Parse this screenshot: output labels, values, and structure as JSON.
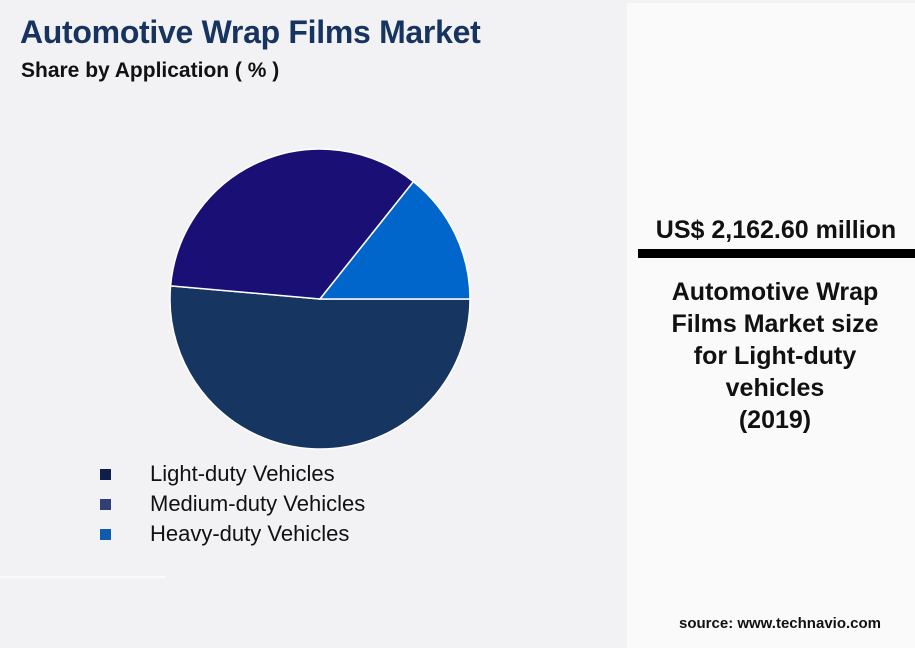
{
  "header": {
    "title": "Automotive Wrap Films Market",
    "subtitle": "Share by Application ( % )"
  },
  "legend": {
    "items": [
      {
        "label": "Light-duty Vehicles",
        "color": "#0f1e4b"
      },
      {
        "label": "Medium-duty Vehicles",
        "color": "#2e4076"
      },
      {
        "label": "Heavy-duty Vehicles",
        "color": "#0e5cb0"
      }
    ]
  },
  "side_panel": {
    "market_value": "US$ 2,162.60 million",
    "description_lines": [
      "Automotive Wrap",
      "Films Market size",
      "for Light-duty",
      "vehicles",
      "(2019)"
    ],
    "source": "source: www.technavio.com"
  },
  "colors": {
    "title": "#16345f",
    "background": "#f2f2f5",
    "panel": "#fafafa"
  },
  "chart_data": {
    "type": "pie",
    "title": "Automotive Wrap Films Market",
    "subtitle": "Share by Application ( % )",
    "categories": [
      "Light-duty Vehicles",
      "Medium-duty Vehicles",
      "Heavy-duty Vehicles"
    ],
    "values": [
      51.4,
      34.3,
      14.3
    ],
    "slice_colors": [
      "#163560",
      "#190f74",
      "#0066cc"
    ],
    "start_angle_deg": 0,
    "direction": "clockwise",
    "legend_position": "bottom-left",
    "annotation": "US$ 2,162.60 million — Automotive Wrap Films Market size for Light-duty vehicles (2019)"
  }
}
